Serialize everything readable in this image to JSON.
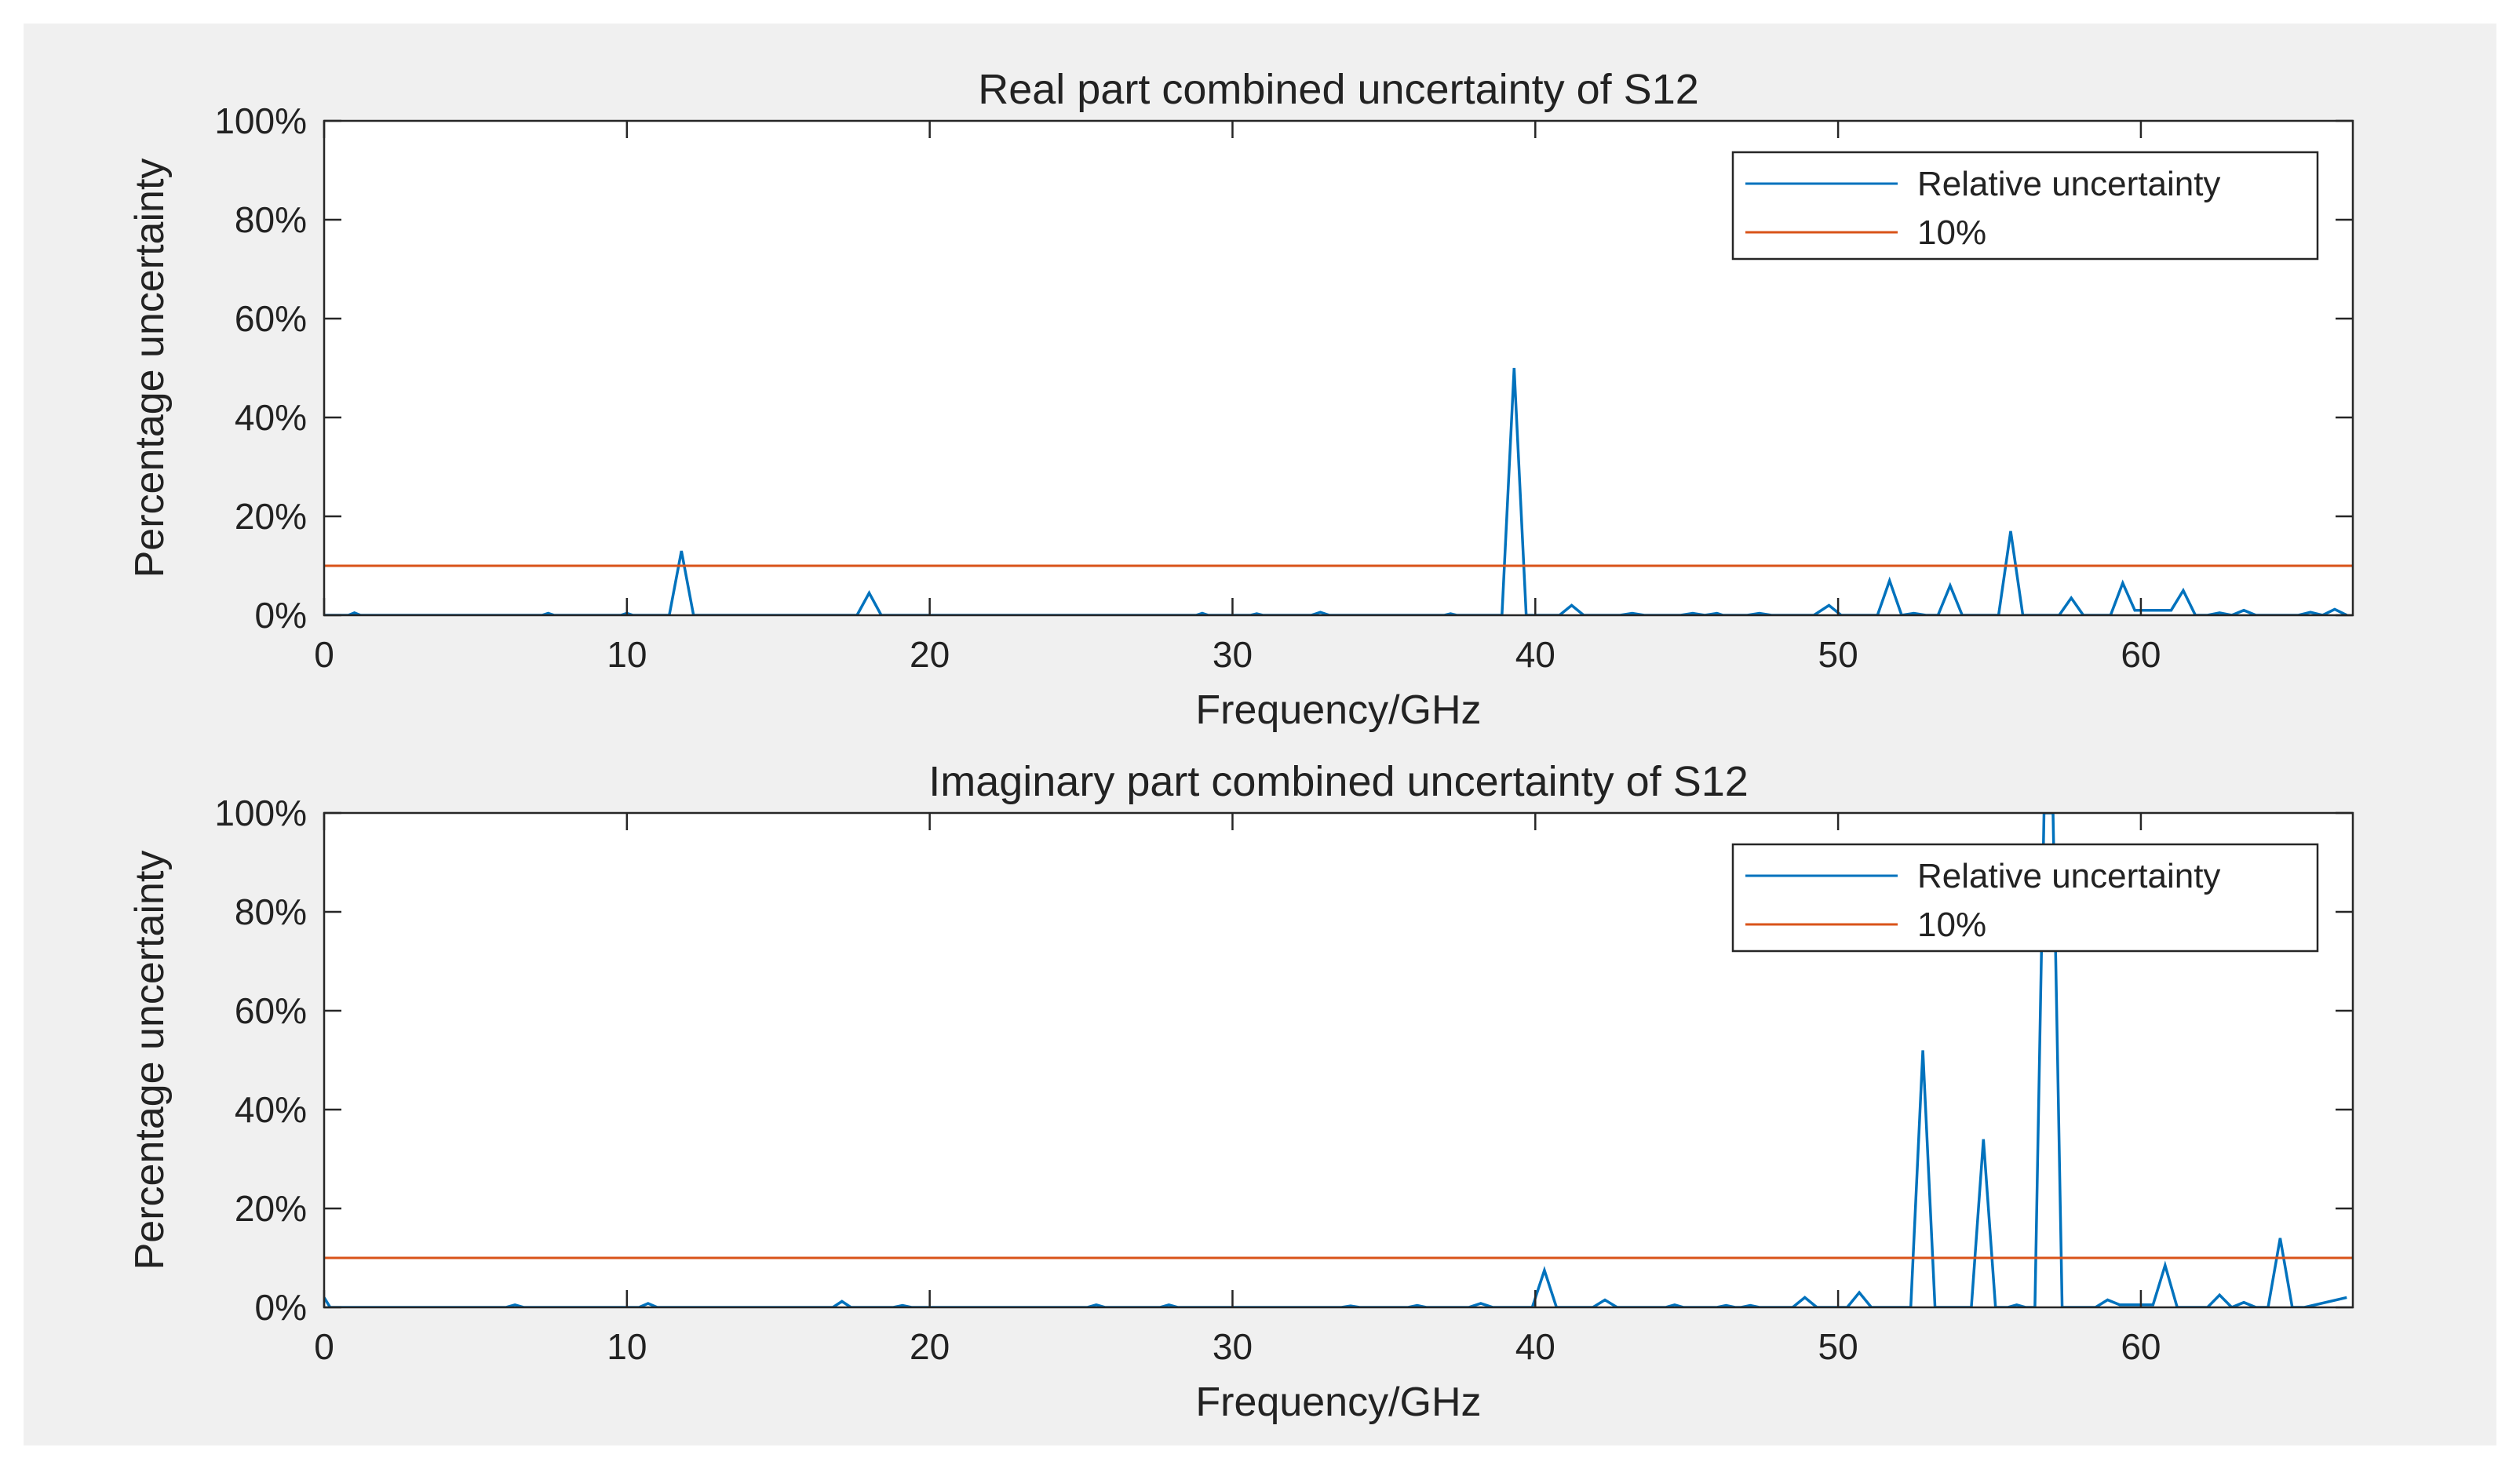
{
  "figure": {
    "background": "#f0f0f0"
  },
  "colors": {
    "series": "#0072bd",
    "threshold": "#d95319",
    "axis": "#262626",
    "plot_bg": "#ffffff"
  },
  "chart_data": [
    {
      "type": "line",
      "title": "Real part combined uncertainty of S12",
      "xlabel": "Frequency/GHz",
      "ylabel": "Percentage uncertainty",
      "xlim": [
        0,
        67
      ],
      "ylim": [
        0,
        100
      ],
      "xticks": [
        0,
        10,
        20,
        30,
        40,
        50,
        60
      ],
      "yticks": [
        0,
        20,
        40,
        60,
        80,
        100
      ],
      "ytick_labels": [
        "0%",
        "20%",
        "40%",
        "60%",
        "80%",
        "100%"
      ],
      "legend": {
        "location": "top-right",
        "entries": [
          "Relative uncertainty",
          "10%"
        ]
      },
      "series": [
        {
          "name": "Relative uncertainty",
          "x": [
            0,
            0.8,
            1.0,
            1.2,
            7.2,
            7.4,
            7.6,
            9.8,
            10.0,
            10.2,
            11.4,
            11.8,
            12.2,
            17.6,
            18.0,
            18.4,
            28.8,
            29.0,
            29.2,
            30.6,
            30.8,
            31.0,
            32.6,
            32.9,
            33.2,
            37.0,
            37.2,
            37.4,
            38.9,
            39.3,
            39.7,
            40.8,
            41.2,
            41.6,
            42.8,
            43.2,
            43.6,
            44.8,
            45.2,
            45.6,
            46.0,
            46.2,
            47.0,
            47.4,
            47.8,
            49.2,
            49.7,
            50.1,
            51.3,
            51.7,
            52.1,
            52.5,
            52.9,
            53.3,
            53.7,
            54.1,
            55.3,
            55.7,
            56.1,
            57.3,
            57.7,
            58.1,
            59.0,
            59.4,
            59.8,
            60.2,
            61.0,
            61.4,
            61.8,
            62.2,
            62.6,
            63.0,
            63.4,
            63.8,
            64.2,
            65.2,
            65.6,
            66.0,
            66.4,
            66.8
          ],
          "y": [
            0,
            0,
            0.5,
            0,
            0,
            0.4,
            0,
            0,
            0.4,
            0,
            0,
            13,
            0,
            0,
            4.5,
            0,
            0,
            0.4,
            0,
            0,
            0.3,
            0,
            0,
            0.6,
            0,
            0,
            0.3,
            0,
            0,
            50,
            0,
            0,
            2,
            0,
            0,
            0.4,
            0,
            0,
            0.4,
            0,
            0.4,
            0,
            0,
            0.4,
            0,
            0,
            2,
            0,
            0,
            7,
            0,
            0.4,
            0,
            0,
            6,
            0,
            0,
            17,
            0,
            0,
            3.5,
            0,
            0,
            6.5,
            1,
            1,
            1,
            5,
            0,
            0,
            0.5,
            0,
            1,
            0,
            0,
            0,
            0.6,
            0,
            1.2,
            0
          ]
        },
        {
          "name": "10%",
          "x": [
            0,
            67
          ],
          "y": [
            10,
            10
          ]
        }
      ]
    },
    {
      "type": "line",
      "title": "Imaginary part combined uncertainty of S12",
      "xlabel": "Frequency/GHz",
      "ylabel": "Percentage uncertainty",
      "xlim": [
        0,
        67
      ],
      "ylim": [
        0,
        100
      ],
      "xticks": [
        0,
        10,
        20,
        30,
        40,
        50,
        60
      ],
      "yticks": [
        0,
        20,
        40,
        60,
        80,
        100
      ],
      "ytick_labels": [
        "0%",
        "20%",
        "40%",
        "60%",
        "80%",
        "100%"
      ],
      "legend": {
        "location": "top-right",
        "entries": [
          "Relative uncertainty",
          "10%"
        ]
      },
      "series": [
        {
          "name": "Relative uncertainty",
          "x": [
            0,
            0.2,
            6.0,
            6.3,
            6.6,
            10.4,
            10.7,
            11.0,
            16.8,
            17.1,
            17.4,
            18.8,
            19.1,
            19.4,
            25.2,
            25.5,
            25.8,
            27.6,
            27.9,
            28.2,
            33.6,
            33.9,
            34.2,
            35.8,
            36.1,
            36.4,
            37.8,
            38.2,
            38.6,
            39.9,
            40.3,
            40.7,
            41.9,
            42.3,
            42.7,
            44.3,
            44.6,
            44.9,
            46.0,
            46.3,
            46.6,
            46.8,
            47.1,
            47.4,
            48.5,
            48.9,
            49.3,
            50.3,
            50.7,
            51.1,
            52.4,
            52.8,
            53.2,
            54.4,
            54.8,
            55.2,
            55.6,
            55.9,
            56.2,
            56.5,
            56.8,
            57.1,
            57.4,
            58.5,
            58.9,
            59.3,
            60.4,
            60.8,
            61.2,
            62.2,
            62.6,
            63.0,
            63.4,
            63.8,
            64.2,
            64.6,
            65.0,
            65.4,
            66.8
          ],
          "y": [
            2,
            0,
            0,
            0.5,
            0,
            0,
            0.8,
            0,
            0,
            1.2,
            0,
            0,
            0.4,
            0,
            0,
            0.5,
            0,
            0,
            0.5,
            0,
            0,
            0.3,
            0,
            0,
            0.4,
            0,
            0,
            0.8,
            0,
            0,
            7.5,
            0,
            0,
            1.5,
            0,
            0,
            0.5,
            0,
            0,
            0.4,
            0,
            0,
            0.4,
            0,
            0,
            2,
            0,
            0,
            3,
            0,
            0,
            52,
            0,
            0,
            34,
            0,
            0,
            0.5,
            0,
            0,
            100,
            100,
            0,
            0,
            1.5,
            0.5,
            0.5,
            8.5,
            0,
            0,
            2.5,
            0,
            1,
            0,
            0,
            14,
            0,
            0,
            2
          ]
        },
        {
          "name": "10%",
          "x": [
            0,
            67
          ],
          "y": [
            10,
            10
          ]
        }
      ]
    }
  ]
}
